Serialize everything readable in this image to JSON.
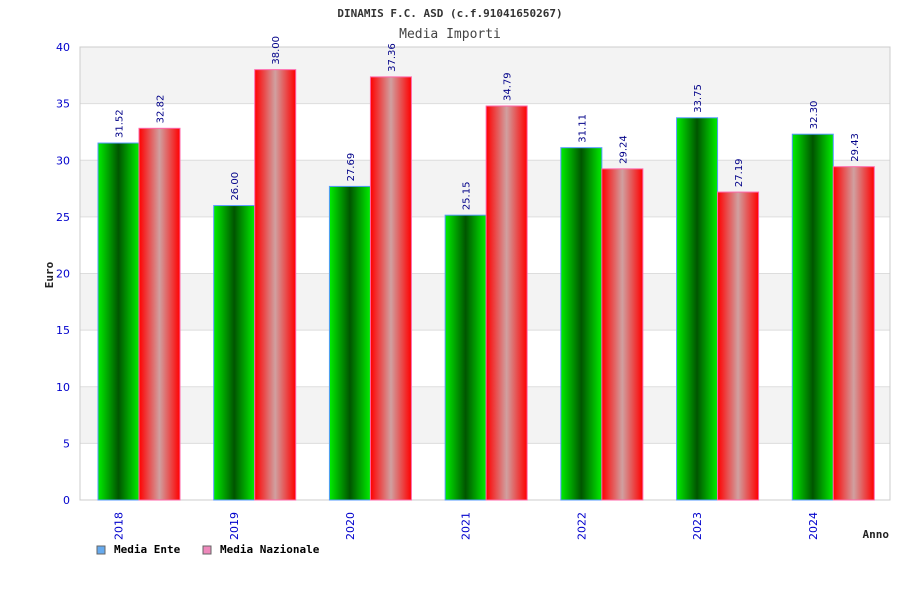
{
  "chart_data": {
    "type": "bar",
    "title": "DINAMIS F.C. ASD (c.f.91041650267)",
    "subtitle": "Media Importi",
    "xlabel": "Anno",
    "ylabel": "Euro",
    "ylim": [
      0,
      40
    ],
    "yticks": [
      0,
      5,
      10,
      15,
      20,
      25,
      30,
      35,
      40
    ],
    "grid": true,
    "legend_position": "bottom-left",
    "categories": [
      "2018",
      "2019",
      "2020",
      "2021",
      "2022",
      "2023",
      "2024"
    ],
    "series": [
      {
        "name": "Media Ente",
        "color": "#66aaee",
        "values": [
          31.52,
          26.0,
          27.69,
          25.15,
          31.11,
          33.75,
          32.3
        ],
        "labels": [
          "31.52",
          "26.00",
          "27.69",
          "25.15",
          "31.11",
          "33.75",
          "32.30"
        ]
      },
      {
        "name": "Media Nazionale",
        "color": "#ee88bb",
        "values": [
          32.82,
          38.0,
          37.36,
          34.79,
          29.24,
          27.19,
          29.43
        ],
        "labels": [
          "32.82",
          "38.00",
          "37.36",
          "34.79",
          "29.24",
          "27.19",
          "29.43"
        ]
      }
    ]
  }
}
